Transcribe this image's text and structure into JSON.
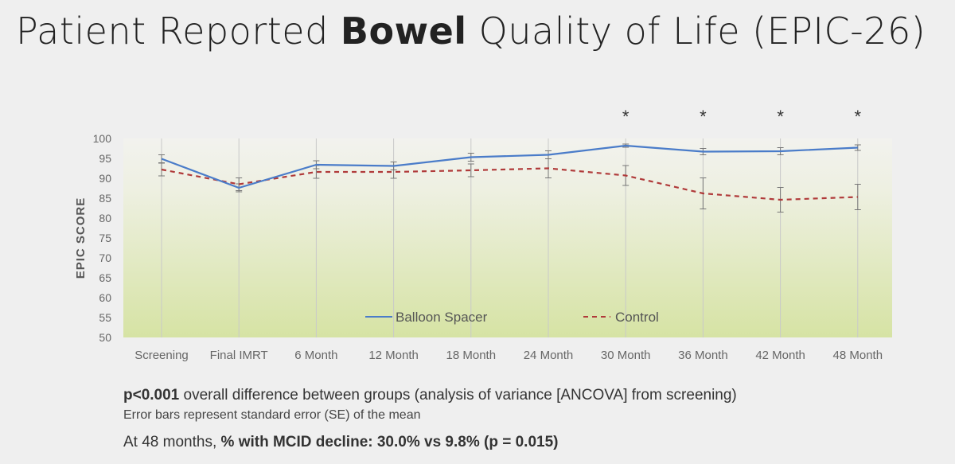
{
  "slide": {
    "title_pre": "Patient Reported ",
    "title_bold": "Bowel",
    "title_post": " Quality of Life (EPIC-26)"
  },
  "footer": {
    "line1_bold": "p<0.001",
    "line1_text": " overall difference between groups (analysis of variance [ANCOVA] from screening)",
    "line2": "Error bars represent standard error (SE) of the mean",
    "line3_pre": "At 48 months, ",
    "line3_bold": "% with MCID decline:  30.0% vs 9.8% (p = 0.015)"
  },
  "chart_data": {
    "type": "line",
    "ylabel": "EPIC SCORE",
    "xlabel": "",
    "ylim": [
      50,
      100
    ],
    "yticks": [
      50,
      55,
      60,
      65,
      70,
      75,
      80,
      85,
      90,
      95,
      100
    ],
    "categories": [
      "Screening",
      "Final IMRT",
      "6 Month",
      "12 Month",
      "18 Month",
      "24 Month",
      "30 Month",
      "36 Month",
      "42 Month",
      "48 Month"
    ],
    "series": [
      {
        "name": "Balloon Spacer",
        "color": "#4a7cc9",
        "style": "solid",
        "values": [
          94.9,
          87.6,
          93.4,
          93.1,
          95.3,
          95.9,
          98.2,
          96.7,
          96.8,
          97.7
        ],
        "se": [
          1.0,
          1.0,
          1.0,
          1.0,
          1.0,
          1.0,
          0.4,
          0.8,
          0.9,
          0.7
        ]
      },
      {
        "name": "Control",
        "color": "#b03a3a",
        "style": "dashed",
        "values": [
          92.2,
          88.5,
          91.6,
          91.6,
          92.0,
          92.5,
          90.7,
          86.2,
          84.6,
          85.3
        ],
        "se": [
          1.6,
          1.6,
          1.6,
          1.6,
          1.6,
          2.4,
          2.5,
          3.9,
          3.1,
          3.2
        ]
      }
    ],
    "significance_marker": "*",
    "significant_categories": [
      "30 Month",
      "36 Month",
      "42 Month",
      "48 Month"
    ],
    "grid": "vertical",
    "legend_position": "bottom-center",
    "background": "gradient white to light green"
  }
}
